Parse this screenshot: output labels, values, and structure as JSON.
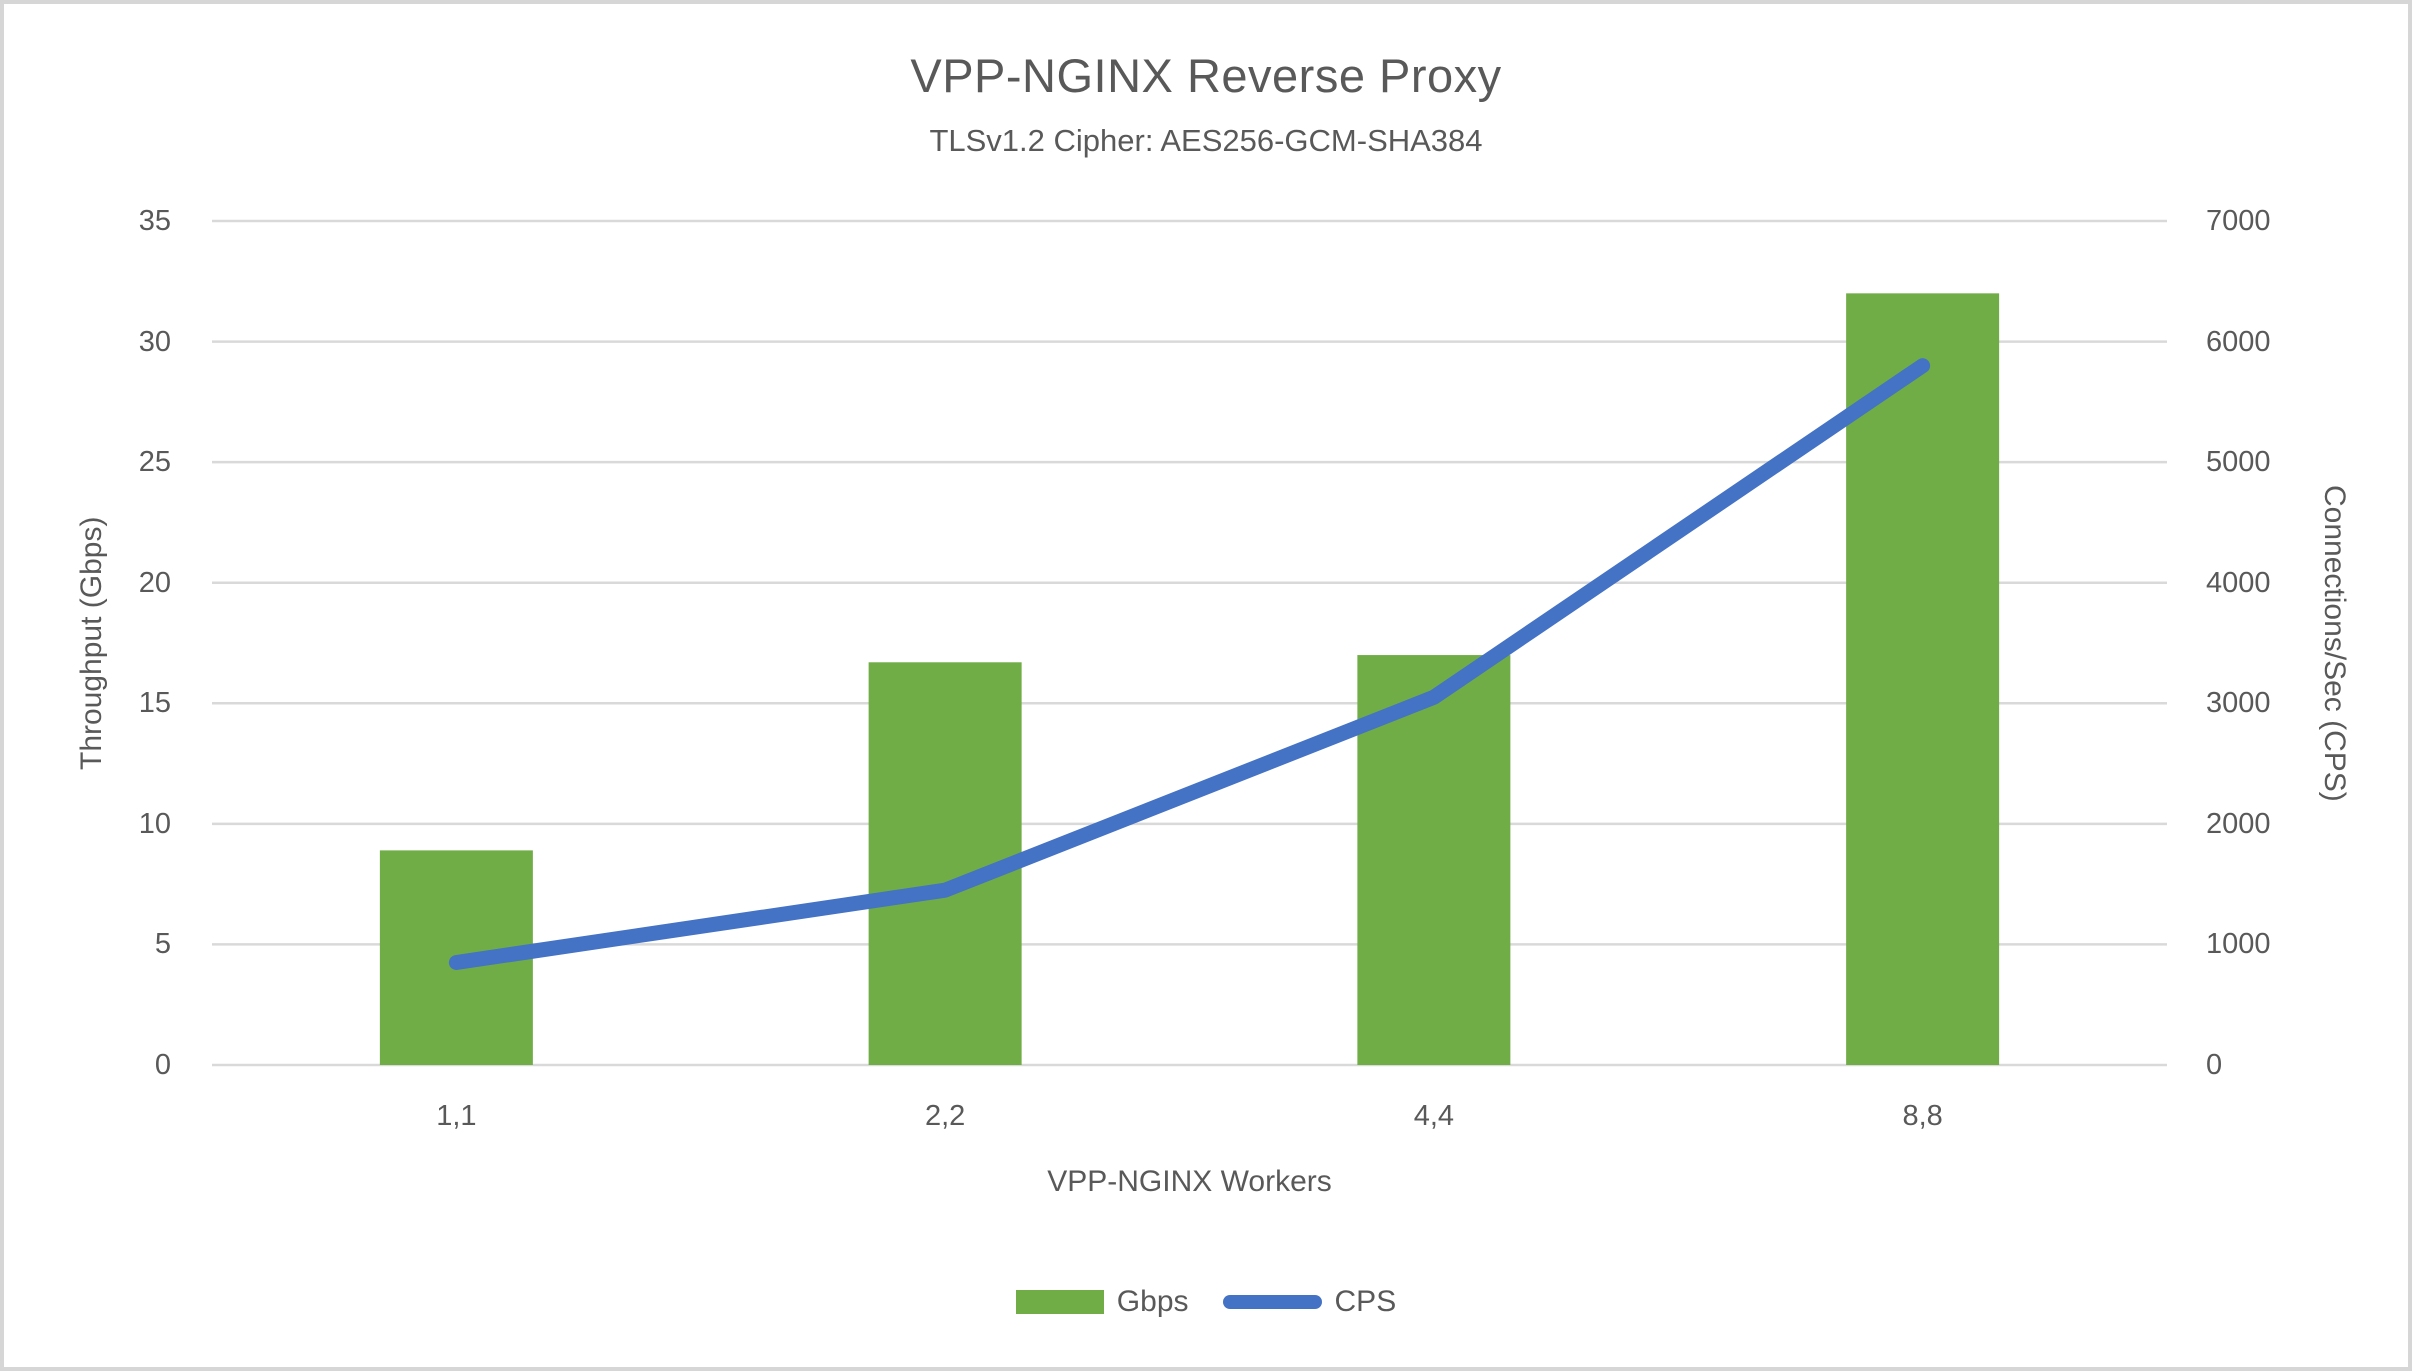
{
  "title": "VPP-NGINX Reverse Proxy",
  "subtitle": "TLSv1.2 Cipher: AES256-GCM-SHA384",
  "chart_data": {
    "type": "combo-bar-line",
    "categories": [
      "1,1",
      "2,2",
      "4,4",
      "8,8"
    ],
    "series": [
      {
        "name": "Gbps",
        "type": "bar",
        "axis": "left",
        "color": "#70AD47",
        "values": [
          8.9,
          16.7,
          17,
          32
        ]
      },
      {
        "name": "CPS",
        "type": "line",
        "axis": "right",
        "color": "#4472C4",
        "values": [
          850,
          1450,
          3050,
          5800
        ]
      }
    ],
    "xlabel": "VPP-NGINX Workers",
    "ylabel_left": "Throughput (Gbps)",
    "ylabel_right": "Connections/Sec (CPS)",
    "ylim_left": [
      0,
      35
    ],
    "yticks_left": [
      35,
      30,
      25,
      20,
      15,
      10,
      5,
      0
    ],
    "ylim_right": [
      0,
      7000
    ],
    "yticks_right": [
      7000,
      6000,
      5000,
      4000,
      3000,
      2000,
      1000,
      0
    ],
    "grid": "horizontal",
    "legend_position": "bottom"
  },
  "colors": {
    "bar": "#70AD47",
    "line": "#4472C4",
    "gridline": "#D9D9D9",
    "text": "#595959",
    "background": "#FFFFFF",
    "border": "#D6D6D6"
  }
}
